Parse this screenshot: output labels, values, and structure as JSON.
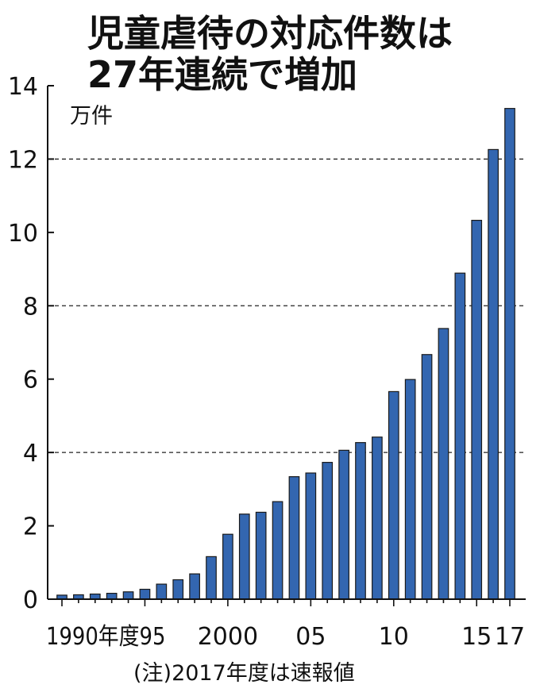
{
  "chart_data": {
    "type": "bar",
    "title": [
      "児童虐待の対応件数は",
      "27年連続で増加"
    ],
    "unit": "万件",
    "note": "(注)2017年度は速報値",
    "ylim": [
      0,
      14
    ],
    "yticks": [
      0,
      2,
      4,
      6,
      8,
      10,
      12,
      14
    ],
    "gridlines": [
      4,
      8,
      12
    ],
    "categories": [
      "1990",
      "1991",
      "1992",
      "1993",
      "1994",
      "1995",
      "1996",
      "1997",
      "1998",
      "1999",
      "2000",
      "2001",
      "2002",
      "2003",
      "2004",
      "2005",
      "2006",
      "2007",
      "2008",
      "2009",
      "2010",
      "2011",
      "2012",
      "2013",
      "2014",
      "2015",
      "2016",
      "2017"
    ],
    "values": [
      0.11,
      0.12,
      0.14,
      0.16,
      0.2,
      0.27,
      0.41,
      0.53,
      0.69,
      1.16,
      1.77,
      2.32,
      2.37,
      2.66,
      3.34,
      3.44,
      3.73,
      4.06,
      4.27,
      4.42,
      5.66,
      5.99,
      6.67,
      7.38,
      8.89,
      10.33,
      12.26,
      13.38
    ],
    "xtick_labels": [
      {
        "index": 0,
        "label": "1990年度95",
        "span_to": 5
      },
      {
        "index": 10,
        "label": "2000"
      },
      {
        "index": 15,
        "label": "05"
      },
      {
        "index": 20,
        "label": "10"
      },
      {
        "index": 25,
        "label": "15"
      },
      {
        "index": 27,
        "label": "17"
      }
    ],
    "bar_color": "#3366b0",
    "bar_edge": "#1a1a1a"
  }
}
